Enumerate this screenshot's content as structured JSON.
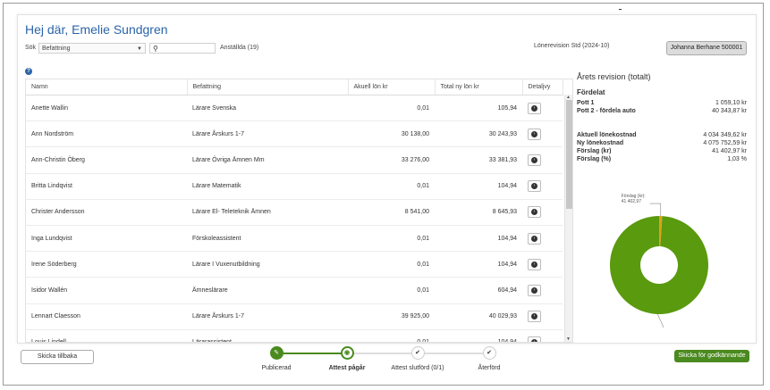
{
  "header": {
    "greeting": "Hej där, Emelie Sundgren",
    "search_label": "Sök",
    "filter_value": "Befattning",
    "employees_count": "Anställda (19)",
    "revision_label": "Lönerevision Std (2024-10)",
    "user_button": "Johanna Berhane 500001"
  },
  "table": {
    "columns": [
      "Namn",
      "Befattning",
      "Akuell lön kr",
      "Total ny lön kr",
      "Detaljvy"
    ],
    "rows": [
      {
        "name": "Anette Wallin",
        "title": "Lärare Svenska",
        "current": "0,01",
        "new": "105,94"
      },
      {
        "name": "Ann Nordström",
        "title": "Lärare Årskurs 1-7",
        "current": "30 138,00",
        "new": "30 243,93"
      },
      {
        "name": "Ann-Christin Öberg",
        "title": "Lärare Övriga Ämnen Mm",
        "current": "33 276,00",
        "new": "33 381,93"
      },
      {
        "name": "Britta Lindqvist",
        "title": "Lärare Matematik",
        "current": "0,01",
        "new": "104,94"
      },
      {
        "name": "Christer Andersson",
        "title": "Lärare El- Teleteknik Ämnen",
        "current": "8 541,00",
        "new": "8 645,93"
      },
      {
        "name": "Inga Lundqvist",
        "title": "Förskoleassistent",
        "current": "0,01",
        "new": "104,94"
      },
      {
        "name": "Irene Söderberg",
        "title": "Lärare I Vuxenutbildning",
        "current": "0,01",
        "new": "104,94"
      },
      {
        "name": "Isidor Wallén",
        "title": "Ämneslärare",
        "current": "0,01",
        "new": "604,94"
      },
      {
        "name": "Lennart Claesson",
        "title": "Lärare Årskurs 1-7",
        "current": "39 925,00",
        "new": "40 029,93"
      },
      {
        "name": "Louis Lindell",
        "title": "Lärarassistent",
        "current": "0,01",
        "new": "104,94"
      }
    ]
  },
  "summary": {
    "title": "Årets revision (totalt)",
    "distributed_heading": "Fördelat",
    "pott1_label": "Pott 1",
    "pott1_value": "1 059,10 kr",
    "pott2_label": "Pott 2 - fördela auto",
    "pott2_value": "40 343,87 kr",
    "current_cost_label": "Aktuell lönekostnad",
    "current_cost_value": "4 034 349,62 kr",
    "new_cost_label": "Ny lönekostnad",
    "new_cost_value": "4 075 752,59 kr",
    "proposal_kr_label": "Förslag (kr)",
    "proposal_kr_value": "41 402,97 kr",
    "proposal_pct_label": "Förslag (%)",
    "proposal_pct_value": "1,03 %"
  },
  "chart_data": {
    "type": "pie",
    "categories": [
      "Förslag (kr)",
      "Aktuell lönekostnad"
    ],
    "values": [
      41402.97,
      4034349.62
    ],
    "labels": [
      "Förslag (kr)",
      "Aktuell lönekostnad"
    ],
    "value_labels": [
      "41 402,97",
      "4 034 349,62"
    ],
    "colors": [
      "#e0a01a",
      "#5a9a0e"
    ],
    "donut": true
  },
  "footer": {
    "back_button": "Skicka tillbaka",
    "send_button": "Skicka för godkännande",
    "steps": [
      {
        "label": "Publicerad",
        "state": "done",
        "icon": "pencil-icon"
      },
      {
        "label": "Attest pågår",
        "state": "active",
        "icon": "eye-icon"
      },
      {
        "label": "Attest slutförd (0/1)",
        "state": "pending",
        "icon": "check-icon"
      },
      {
        "label": "Återförd",
        "state": "pending",
        "icon": "check-icon"
      }
    ]
  }
}
